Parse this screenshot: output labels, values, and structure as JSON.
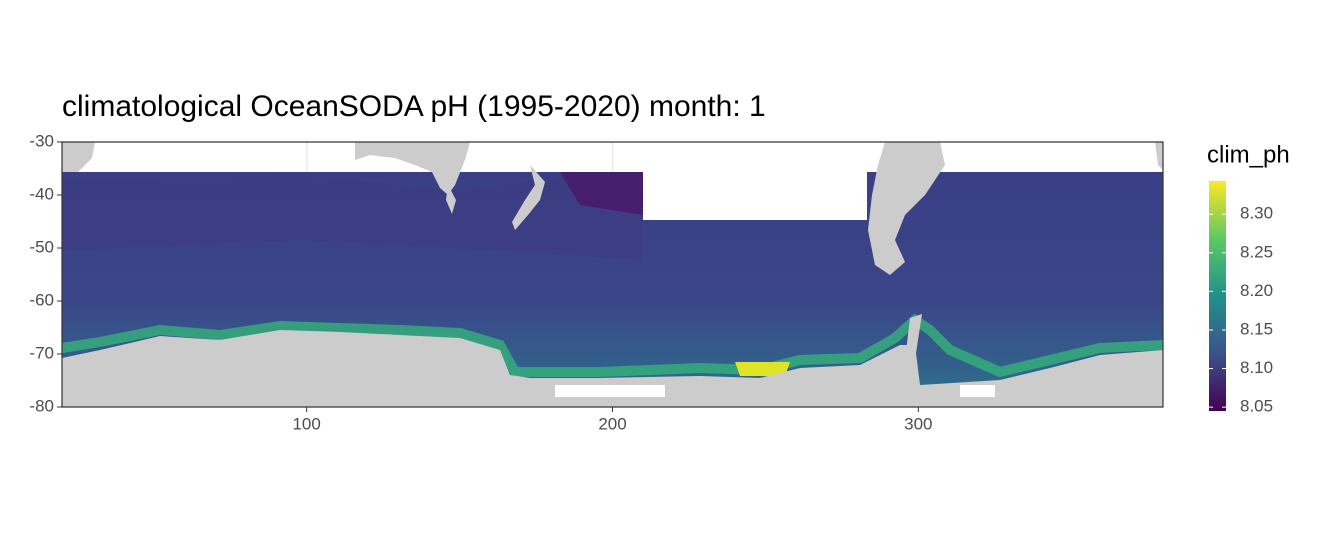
{
  "chart_data": {
    "type": "heatmap",
    "title": "climatological OceanSODA pH (1995-2020) month: 1",
    "xlim": [
      20,
      380
    ],
    "xticks": [
      100,
      200,
      300
    ],
    "ylim": [
      -80,
      -30
    ],
    "yticks": [
      -30,
      -40,
      -50,
      -60,
      -70,
      -80
    ],
    "grid": true,
    "legend_title": "clim_ph",
    "colorbar_lim": [
      8.045,
      8.343
    ],
    "colorbar_ticks": [
      {
        "value": 8.3,
        "label": "8.30"
      },
      8.25,
      {
        "value": 8.2,
        "label": "8.20"
      },
      8.15,
      {
        "value": 8.1,
        "label": "8.10"
      },
      8.05
    ],
    "colors": [
      "#440154",
      "#3b528b",
      "#21918c",
      "#5ec962",
      "#fde725"
    ]
  }
}
